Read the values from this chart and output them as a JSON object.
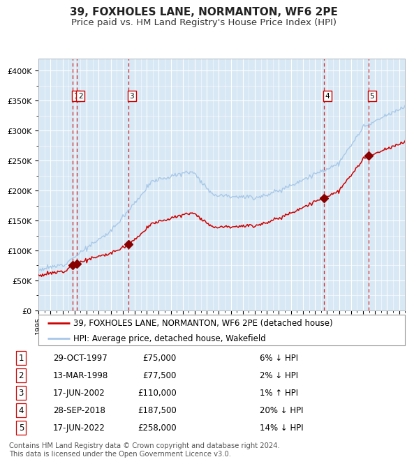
{
  "title": "39, FOXHOLES LANE, NORMANTON, WF6 2PE",
  "subtitle": "Price paid vs. HM Land Registry's House Price Index (HPI)",
  "ylim": [
    0,
    420000
  ],
  "yticks": [
    0,
    50000,
    100000,
    150000,
    200000,
    250000,
    300000,
    350000,
    400000
  ],
  "ytick_labels": [
    "£0",
    "£50K",
    "£100K",
    "£150K",
    "£200K",
    "£250K",
    "£300K",
    "£350K",
    "£400K"
  ],
  "hpi_color": "#a8c8e8",
  "price_color": "#cc0000",
  "marker_color": "#880000",
  "dashed_color": "#cc0000",
  "bg_color": "#d8e8f4",
  "grid_color": "#ffffff",
  "xlim_start": 1995.0,
  "xlim_end": 2025.5,
  "transactions": [
    {
      "num": 1,
      "date_x": 1997.83,
      "price": 75000,
      "label": "29-OCT-1997",
      "amount": "£75,000",
      "hpi_diff": "6% ↓ HPI"
    },
    {
      "num": 2,
      "date_x": 1998.2,
      "price": 77500,
      "label": "13-MAR-1998",
      "amount": "£77,500",
      "hpi_diff": "2% ↓ HPI"
    },
    {
      "num": 3,
      "date_x": 2002.46,
      "price": 110000,
      "label": "17-JUN-2002",
      "amount": "£110,000",
      "hpi_diff": "1% ↑ HPI"
    },
    {
      "num": 4,
      "date_x": 2018.74,
      "price": 187500,
      "label": "28-SEP-2018",
      "amount": "£187,500",
      "hpi_diff": "20% ↓ HPI"
    },
    {
      "num": 5,
      "date_x": 2022.46,
      "price": 258000,
      "label": "17-JUN-2022",
      "amount": "£258,000",
      "hpi_diff": "14% ↓ HPI"
    }
  ],
  "legend_line1": "39, FOXHOLES LANE, NORMANTON, WF6 2PE (detached house)",
  "legend_line2": "HPI: Average price, detached house, Wakefield",
  "footnote": "Contains HM Land Registry data © Crown copyright and database right 2024.\nThis data is licensed under the Open Government Licence v3.0.",
  "title_fontsize": 11,
  "subtitle_fontsize": 9.5,
  "tick_fontsize": 8,
  "legend_fontsize": 8.5,
  "table_fontsize": 8.5,
  "footnote_fontsize": 7.2
}
